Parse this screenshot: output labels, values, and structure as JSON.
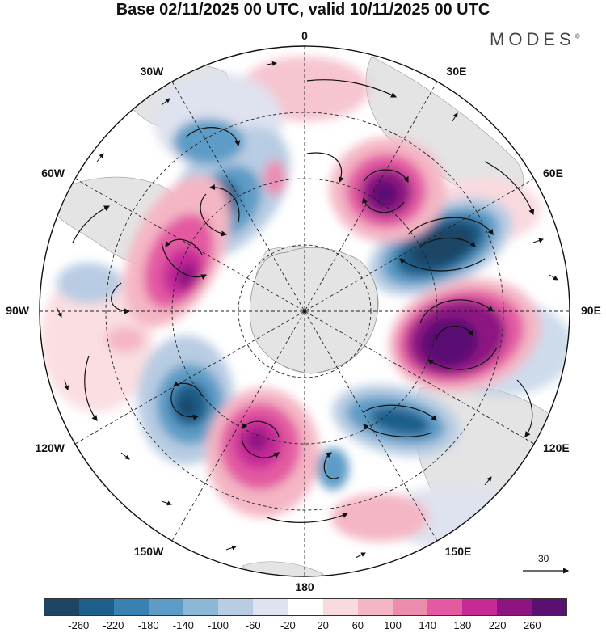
{
  "title": "Base 02/11/2025 00 UTC, valid 10/11/2025 00 UTC",
  "brand": "MODES",
  "brand_mark": "©",
  "longitude_labels": {
    "top": "0",
    "n30e": "30E",
    "n60e": "60E",
    "e90": "90E",
    "e120": "120E",
    "e150": "150E",
    "bottom": "180",
    "w150": "150W",
    "w120": "120W",
    "w90": "90W",
    "w60": "60W",
    "w30": "30W"
  },
  "reference_vector": "30",
  "colorbar": {
    "ticks": [
      "-260",
      "-220",
      "-180",
      "-140",
      "-100",
      "-60",
      "-20",
      "20",
      "60",
      "100",
      "140",
      "180",
      "220",
      "260"
    ],
    "colors": [
      "#1d4566",
      "#1f5f8b",
      "#3a81b3",
      "#5d9cc6",
      "#8cb7d6",
      "#b8cce3",
      "#dfe2ef",
      "#ffffff",
      "#f9dadf",
      "#f4b6c4",
      "#ec8db0",
      "#e35aa2",
      "#c62a97",
      "#8e1482",
      "#5a0f73"
    ]
  }
}
